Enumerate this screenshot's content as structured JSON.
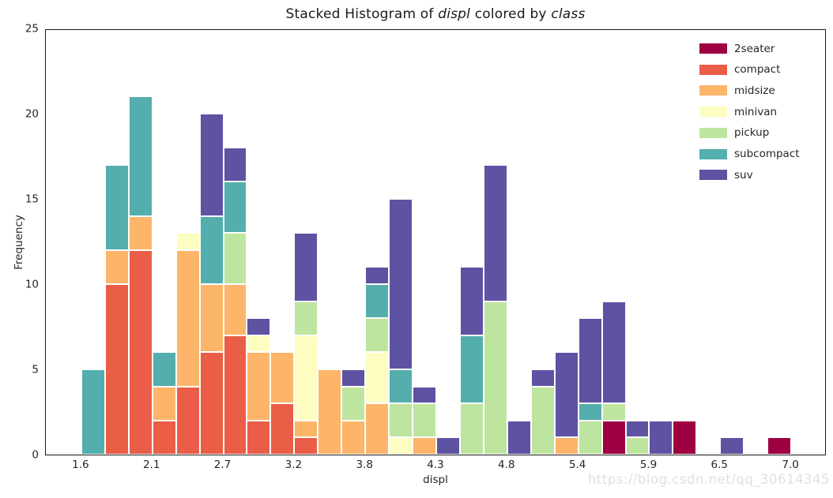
{
  "watermark": "https://blog.csdn.net/qq_30614345",
  "colors": {
    "text": "#262626",
    "spine": "#1a1a1a",
    "watermark": "#dde1e7",
    "background": "#ffffff",
    "bar_edge": "#ffffff"
  },
  "chart_data": {
    "type": "bar",
    "subtype": "stacked-histogram",
    "title": "Stacked Histogram of displ colored by class",
    "title_parts": [
      {
        "text": "Stacked Histogram of ",
        "italic": false
      },
      {
        "text": "displ",
        "italic": true
      },
      {
        "text": " colored by ",
        "italic": false
      },
      {
        "text": "class",
        "italic": true
      }
    ],
    "xlabel": "displ",
    "ylabel": "Frequency",
    "xlim": [
      1.33,
      7.27
    ],
    "ylim": [
      0,
      25
    ],
    "grid": false,
    "legend_position": "upper right",
    "bin_start": 1.6,
    "bin_width": 0.18,
    "n_bins": 30,
    "total_count": 234,
    "xticks": [
      {
        "value": 1.6,
        "label": "1.6"
      },
      {
        "value": 2.14,
        "label": "2.1"
      },
      {
        "value": 2.68,
        "label": "2.7"
      },
      {
        "value": 3.22,
        "label": "3.2"
      },
      {
        "value": 3.76,
        "label": "3.8"
      },
      {
        "value": 4.3,
        "label": "4.3"
      },
      {
        "value": 4.84,
        "label": "4.8"
      },
      {
        "value": 5.38,
        "label": "5.4"
      },
      {
        "value": 5.92,
        "label": "5.9"
      },
      {
        "value": 6.46,
        "label": "6.5"
      },
      {
        "value": 7.0,
        "label": "7.0"
      }
    ],
    "yticks": [
      0,
      5,
      10,
      15,
      20,
      25
    ],
    "series": [
      {
        "name": "2seater",
        "color": "#9E0142",
        "total": 5,
        "counts": [
          0,
          0,
          0,
          0,
          0,
          0,
          0,
          0,
          0,
          0,
          0,
          0,
          0,
          0,
          0,
          0,
          0,
          0,
          0,
          0,
          0,
          0,
          2,
          0,
          0,
          2,
          0,
          0,
          0,
          1
        ]
      },
      {
        "name": "compact",
        "color": "#EA5D47",
        "total": 47,
        "counts": [
          0,
          10,
          12,
          2,
          4,
          6,
          7,
          2,
          3,
          1,
          0,
          0,
          0,
          0,
          0,
          0,
          0,
          0,
          0,
          0,
          0,
          0,
          0,
          0,
          0,
          0,
          0,
          0,
          0,
          0
        ]
      },
      {
        "name": "midsize",
        "color": "#FCB569",
        "total": 41,
        "counts": [
          0,
          2,
          2,
          2,
          8,
          4,
          3,
          4,
          3,
          1,
          5,
          2,
          3,
          0,
          1,
          0,
          0,
          0,
          0,
          0,
          1,
          0,
          0,
          0,
          0,
          0,
          0,
          0,
          0,
          0
        ]
      },
      {
        "name": "minivan",
        "color": "#FDFDC2",
        "total": 11,
        "counts": [
          0,
          0,
          0,
          0,
          1,
          0,
          0,
          1,
          0,
          5,
          0,
          0,
          3,
          1,
          0,
          0,
          0,
          0,
          0,
          0,
          0,
          0,
          0,
          0,
          0,
          0,
          0,
          0,
          0,
          0
        ]
      },
      {
        "name": "pickup",
        "color": "#BEE5A0",
        "total": 33,
        "counts": [
          0,
          0,
          0,
          0,
          0,
          0,
          3,
          0,
          0,
          2,
          0,
          2,
          2,
          2,
          2,
          0,
          3,
          9,
          0,
          4,
          0,
          2,
          1,
          1,
          0,
          0,
          0,
          0,
          0,
          0
        ]
      },
      {
        "name": "subcompact",
        "color": "#54AEAD",
        "total": 35,
        "counts": [
          5,
          5,
          7,
          2,
          0,
          4,
          3,
          0,
          0,
          0,
          0,
          0,
          2,
          2,
          0,
          0,
          4,
          0,
          0,
          0,
          0,
          1,
          0,
          0,
          0,
          0,
          0,
          0,
          0,
          0
        ]
      },
      {
        "name": "suv",
        "color": "#5E52A3",
        "total": 62,
        "counts": [
          0,
          0,
          0,
          0,
          0,
          6,
          2,
          1,
          0,
          4,
          0,
          1,
          1,
          10,
          1,
          1,
          4,
          8,
          2,
          1,
          5,
          5,
          6,
          1,
          2,
          0,
          0,
          1,
          0,
          0
        ]
      }
    ]
  }
}
